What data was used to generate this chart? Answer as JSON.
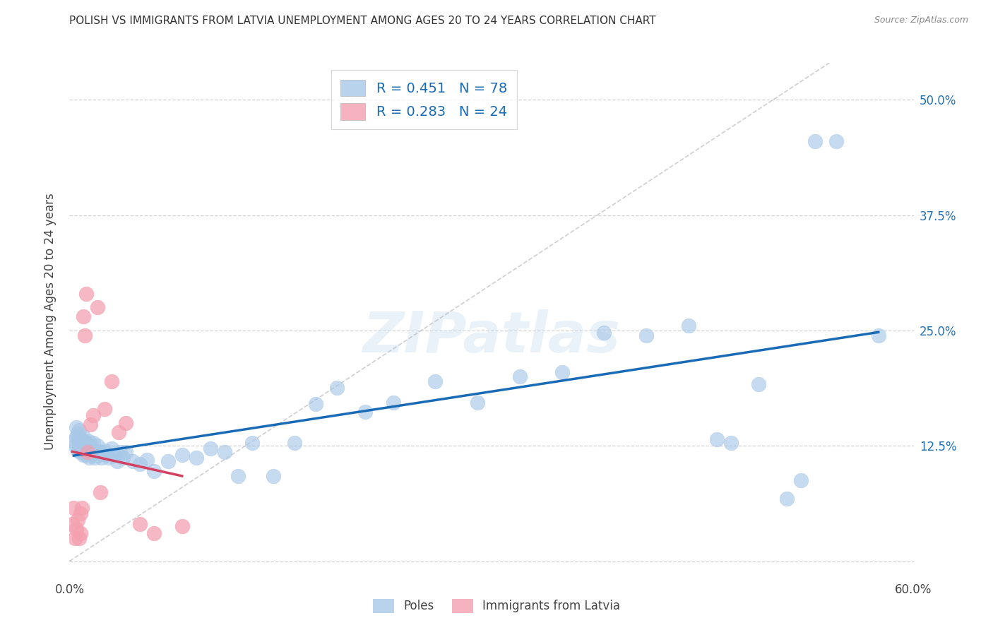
{
  "title": "POLISH VS IMMIGRANTS FROM LATVIA UNEMPLOYMENT AMONG AGES 20 TO 24 YEARS CORRELATION CHART",
  "source": "Source: ZipAtlas.com",
  "ylabel": "Unemployment Among Ages 20 to 24 years",
  "xlim": [
    0.0,
    0.6
  ],
  "ylim": [
    -0.02,
    0.54
  ],
  "yticks": [
    0.0,
    0.125,
    0.25,
    0.375,
    0.5
  ],
  "ytick_labels_right": [
    "",
    "12.5%",
    "25.0%",
    "37.5%",
    "50.0%"
  ],
  "xticks": [
    0.0,
    0.1,
    0.2,
    0.3,
    0.4,
    0.5,
    0.6
  ],
  "xtick_labels": [
    "0.0%",
    "",
    "",
    "",
    "",
    "",
    "60.0%"
  ],
  "poles_R": 0.451,
  "poles_N": 78,
  "latvia_R": 0.283,
  "latvia_N": 24,
  "poles_color": "#a8c8e8",
  "latvia_color": "#f4a0b0",
  "poles_line_color": "#1a6bb5",
  "latvia_line_color": "#d44060",
  "watermark": "ZIPatlas",
  "legend_label_poles": "Poles",
  "legend_label_latvia": "Immigrants from Latvia",
  "poles_x": [
    0.003,
    0.004,
    0.005,
    0.005,
    0.006,
    0.006,
    0.007,
    0.007,
    0.008,
    0.008,
    0.008,
    0.009,
    0.009,
    0.01,
    0.01,
    0.01,
    0.011,
    0.011,
    0.012,
    0.012,
    0.012,
    0.013,
    0.013,
    0.014,
    0.014,
    0.015,
    0.015,
    0.016,
    0.016,
    0.017,
    0.018,
    0.018,
    0.019,
    0.02,
    0.021,
    0.022,
    0.023,
    0.025,
    0.026,
    0.028,
    0.03,
    0.032,
    0.034,
    0.036,
    0.038,
    0.04,
    0.045,
    0.05,
    0.055,
    0.06,
    0.07,
    0.08,
    0.09,
    0.1,
    0.11,
    0.12,
    0.13,
    0.145,
    0.16,
    0.175,
    0.19,
    0.21,
    0.23,
    0.26,
    0.29,
    0.32,
    0.35,
    0.38,
    0.41,
    0.44,
    0.46,
    0.47,
    0.49,
    0.51,
    0.52,
    0.53,
    0.545,
    0.575
  ],
  "poles_y": [
    0.13,
    0.125,
    0.135,
    0.145,
    0.12,
    0.138,
    0.128,
    0.142,
    0.125,
    0.132,
    0.118,
    0.13,
    0.122,
    0.135,
    0.128,
    0.115,
    0.13,
    0.122,
    0.128,
    0.12,
    0.115,
    0.125,
    0.118,
    0.13,
    0.112,
    0.125,
    0.118,
    0.122,
    0.115,
    0.128,
    0.12,
    0.112,
    0.118,
    0.125,
    0.115,
    0.118,
    0.112,
    0.12,
    0.115,
    0.112,
    0.122,
    0.115,
    0.108,
    0.118,
    0.112,
    0.118,
    0.108,
    0.105,
    0.11,
    0.098,
    0.108,
    0.115,
    0.112,
    0.122,
    0.118,
    0.092,
    0.128,
    0.092,
    0.128,
    0.17,
    0.188,
    0.162,
    0.172,
    0.195,
    0.172,
    0.2,
    0.205,
    0.248,
    0.245,
    0.255,
    0.132,
    0.128,
    0.192,
    0.068,
    0.088,
    0.455,
    0.455,
    0.245
  ],
  "latvia_x": [
    0.002,
    0.003,
    0.004,
    0.005,
    0.006,
    0.007,
    0.008,
    0.008,
    0.009,
    0.01,
    0.011,
    0.012,
    0.013,
    0.015,
    0.017,
    0.02,
    0.022,
    0.025,
    0.03,
    0.035,
    0.04,
    0.05,
    0.06,
    0.08
  ],
  "latvia_y": [
    0.04,
    0.058,
    0.025,
    0.035,
    0.045,
    0.025,
    0.052,
    0.03,
    0.058,
    0.265,
    0.245,
    0.29,
    0.118,
    0.148,
    0.158,
    0.275,
    0.075,
    0.165,
    0.195,
    0.14,
    0.15,
    0.04,
    0.03,
    0.038
  ]
}
